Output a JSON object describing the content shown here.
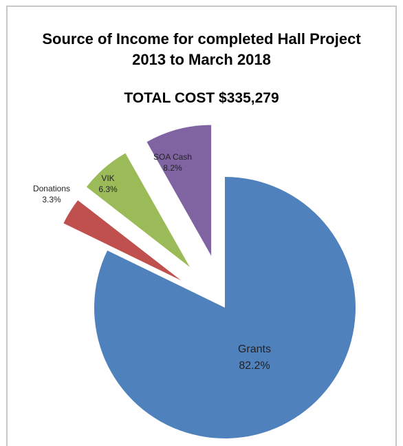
{
  "chart_data": {
    "type": "pie",
    "title_line1": "Source of Income for completed Hall Project",
    "title_line2": "2013 to March  2018",
    "subtitle": "TOTAL COST $335,279",
    "slices": [
      {
        "name": "Grants",
        "percent_label": "82.2%",
        "value": 82.2,
        "color": "#4f81bd"
      },
      {
        "name": "Donations",
        "percent_label": "3.3%",
        "value": 3.3,
        "color": "#c0504d"
      },
      {
        "name": "VIK",
        "percent_label": "6.3%",
        "value": 6.3,
        "color": "#9bbb59"
      },
      {
        "name": "SOA Cash",
        "percent_label": "8.2%",
        "value": 8.2,
        "color": "#8064a2"
      }
    ]
  }
}
